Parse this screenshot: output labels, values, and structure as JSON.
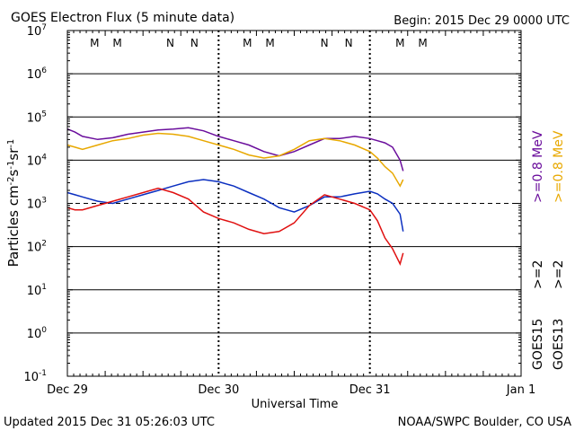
{
  "chart_data": {
    "type": "line",
    "title": "GOES Electron Flux (5 minute data)",
    "begin_label": "Begin: 2015 Dec 29 0000 UTC",
    "xlabel": "Universal Time",
    "ylabel": "Particles cm-2s-1sr-1",
    "ylim_exp": [
      -1,
      7
    ],
    "yscale": "log",
    "ytick_exponents": [
      -1,
      0,
      1,
      2,
      3,
      4,
      5,
      6,
      7
    ],
    "xlim_days": [
      0,
      3
    ],
    "xtick_labels": [
      "Dec 29",
      "Dec 30",
      "Dec 31",
      "Jan 1"
    ],
    "xtick_values": [
      0,
      1,
      2,
      3
    ],
    "threshold_exp": 3,
    "markers": [
      {
        "label": "M",
        "x": 0.18,
        "color": "#d40000"
      },
      {
        "label": "M",
        "x": 0.33,
        "color": "#1010c0"
      },
      {
        "label": "N",
        "x": 0.68,
        "color": "#d40000"
      },
      {
        "label": "N",
        "x": 0.84,
        "color": "#1010c0"
      },
      {
        "label": "M",
        "x": 1.19,
        "color": "#d40000"
      },
      {
        "label": "M",
        "x": 1.34,
        "color": "#1010c0"
      },
      {
        "label": "N",
        "x": 1.7,
        "color": "#d40000"
      },
      {
        "label": "N",
        "x": 1.86,
        "color": "#1010c0"
      },
      {
        "label": "M",
        "x": 2.2,
        "color": "#d40000"
      },
      {
        "label": "M",
        "x": 2.35,
        "color": "#1010c0"
      }
    ],
    "series": [
      {
        "name": "GOES15 >=0.8 MeV",
        "color": "#6a0d9c",
        "x": [
          0,
          0.05,
          0.1,
          0.2,
          0.3,
          0.4,
          0.5,
          0.6,
          0.7,
          0.8,
          0.9,
          1.0,
          1.1,
          1.2,
          1.3,
          1.4,
          1.5,
          1.6,
          1.7,
          1.8,
          1.9,
          2.0,
          2.05,
          2.1,
          2.15,
          2.2,
          2.22
        ],
        "y": [
          4.72,
          4.65,
          4.55,
          4.48,
          4.52,
          4.6,
          4.65,
          4.7,
          4.72,
          4.75,
          4.68,
          4.55,
          4.45,
          4.35,
          4.2,
          4.1,
          4.2,
          4.35,
          4.5,
          4.5,
          4.55,
          4.5,
          4.45,
          4.4,
          4.3,
          4.0,
          3.75
        ]
      },
      {
        "name": "GOES13 >=0.8 MeV",
        "color": "#e8a800",
        "x": [
          0,
          0.05,
          0.1,
          0.2,
          0.3,
          0.4,
          0.5,
          0.6,
          0.7,
          0.8,
          0.9,
          1.0,
          1.1,
          1.2,
          1.3,
          1.4,
          1.5,
          1.6,
          1.7,
          1.8,
          1.9,
          2.0,
          2.05,
          2.1,
          2.15,
          2.2,
          2.22
        ],
        "y": [
          4.35,
          4.3,
          4.25,
          4.35,
          4.45,
          4.5,
          4.58,
          4.62,
          4.6,
          4.55,
          4.45,
          4.35,
          4.25,
          4.12,
          4.05,
          4.1,
          4.25,
          4.45,
          4.5,
          4.45,
          4.35,
          4.2,
          4.05,
          3.85,
          3.7,
          3.4,
          3.55
        ]
      },
      {
        "name": "GOES15 >=2 MeV",
        "color": "#0b2fc0",
        "x": [
          0,
          0.05,
          0.1,
          0.2,
          0.3,
          0.4,
          0.5,
          0.6,
          0.7,
          0.8,
          0.9,
          1.0,
          1.1,
          1.2,
          1.3,
          1.4,
          1.5,
          1.6,
          1.7,
          1.8,
          1.9,
          2.0,
          2.05,
          2.1,
          2.15,
          2.2,
          2.22
        ],
        "y": [
          3.25,
          3.2,
          3.15,
          3.05,
          3.0,
          3.1,
          3.2,
          3.3,
          3.4,
          3.5,
          3.55,
          3.5,
          3.4,
          3.25,
          3.1,
          2.9,
          2.8,
          2.95,
          3.15,
          3.15,
          3.22,
          3.28,
          3.22,
          3.1,
          3.0,
          2.75,
          2.35
        ]
      },
      {
        "name": "GOES13 >=2 MeV",
        "color": "#e01010",
        "x": [
          0,
          0.05,
          0.1,
          0.2,
          0.3,
          0.4,
          0.5,
          0.6,
          0.7,
          0.8,
          0.9,
          1.0,
          1.1,
          1.2,
          1.3,
          1.4,
          1.5,
          1.6,
          1.7,
          1.8,
          1.9,
          2.0,
          2.05,
          2.1,
          2.15,
          2.2,
          2.22
        ],
        "y": [
          2.9,
          2.85,
          2.85,
          2.95,
          3.05,
          3.15,
          3.25,
          3.35,
          3.25,
          3.1,
          2.8,
          2.65,
          2.55,
          2.4,
          2.3,
          2.35,
          2.55,
          2.95,
          3.2,
          3.1,
          3.0,
          2.85,
          2.6,
          2.2,
          1.95,
          1.6,
          1.85
        ]
      }
    ],
    "legend": {
      "right_column_top": [
        {
          "text": ">=0.8",
          "color": "#e8a800"
        },
        {
          "text": " MeV",
          "color": "#000000"
        }
      ],
      "entries": [
        {
          "text": ">=0.8 MeV",
          "color": "#6a0d9c"
        },
        {
          "text": ">=0.8 MeV",
          "color": "#e8a800"
        },
        {
          "text": ">=2",
          "color": "#0b2fc0"
        },
        {
          "text": ">=2",
          "color": "#e01010"
        }
      ],
      "satellites": [
        "GOES15",
        "GOES13"
      ]
    }
  },
  "footer": {
    "updated": "Updated 2015 Dec 31 05:26:03 UTC",
    "credit": "NOAA/SWPC Boulder, CO USA"
  }
}
